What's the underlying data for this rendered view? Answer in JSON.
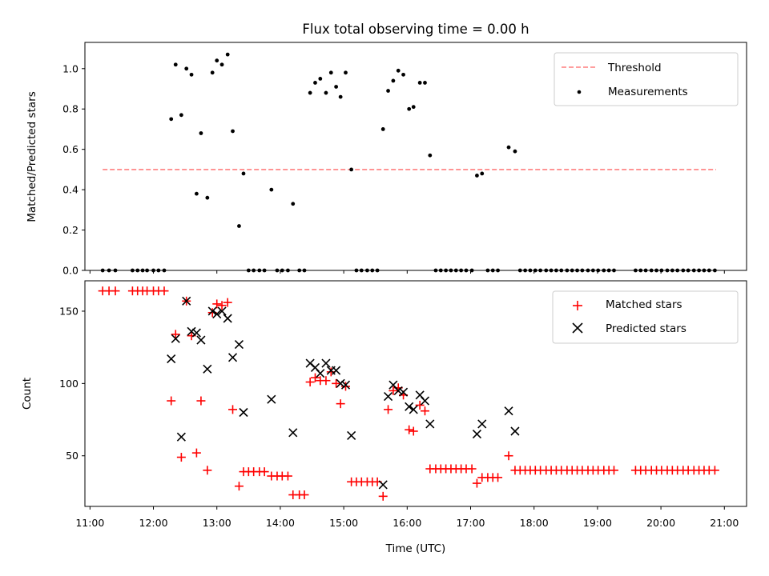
{
  "chart_data": {
    "title": "Flux total observing time = 0.00 h",
    "xlabel": "Time (UTC)",
    "x_ticks": [
      "11:00",
      "12:00",
      "13:00",
      "14:00",
      "15:00",
      "16:00",
      "17:00",
      "18:00",
      "19:00",
      "20:00",
      "21:00"
    ],
    "xlim": [
      10.92,
      21.35
    ],
    "top": {
      "type": "scatter",
      "ylabel": "Matched/Predicted stars",
      "ylim": [
        0,
        1.13
      ],
      "y_ticks": [
        "0.0",
        "0.2",
        "0.4",
        "0.6",
        "0.8",
        "1.0"
      ],
      "threshold": {
        "label": "Threshold",
        "value": 0.5,
        "x_start": 11.2,
        "x_end": 20.87,
        "color": "#ff7f7f"
      },
      "measurements": {
        "label": "Measurements",
        "color": "#000000",
        "points": [
          [
            11.2,
            0
          ],
          [
            11.3,
            0
          ],
          [
            11.4,
            0
          ],
          [
            11.67,
            0
          ],
          [
            11.75,
            0
          ],
          [
            11.83,
            0
          ],
          [
            11.9,
            0
          ],
          [
            12.0,
            0
          ],
          [
            12.08,
            0
          ],
          [
            12.17,
            0
          ],
          [
            12.28,
            0.75
          ],
          [
            12.35,
            1.02
          ],
          [
            12.44,
            0.77
          ],
          [
            12.52,
            1.0
          ],
          [
            12.6,
            0.97
          ],
          [
            12.68,
            0.38
          ],
          [
            12.75,
            0.68
          ],
          [
            12.85,
            0.36
          ],
          [
            12.93,
            0.98
          ],
          [
            13.0,
            1.04
          ],
          [
            13.08,
            1.02
          ],
          [
            13.17,
            1.07
          ],
          [
            13.25,
            0.69
          ],
          [
            13.35,
            0.22
          ],
          [
            13.42,
            0.48
          ],
          [
            13.5,
            0
          ],
          [
            13.58,
            0
          ],
          [
            13.67,
            0
          ],
          [
            13.75,
            0
          ],
          [
            13.86,
            0.4
          ],
          [
            13.95,
            0
          ],
          [
            14.03,
            0
          ],
          [
            14.12,
            0
          ],
          [
            14.2,
            0.33
          ],
          [
            14.3,
            0
          ],
          [
            14.38,
            0
          ],
          [
            14.47,
            0.88
          ],
          [
            14.55,
            0.93
          ],
          [
            14.63,
            0.95
          ],
          [
            14.72,
            0.88
          ],
          [
            14.8,
            0.98
          ],
          [
            14.88,
            0.91
          ],
          [
            14.95,
            0.86
          ],
          [
            15.03,
            0.98
          ],
          [
            15.12,
            0.5
          ],
          [
            15.2,
            0
          ],
          [
            15.28,
            0
          ],
          [
            15.37,
            0
          ],
          [
            15.45,
            0
          ],
          [
            15.53,
            0
          ],
          [
            15.62,
            0.7
          ],
          [
            15.7,
            0.89
          ],
          [
            15.78,
            0.94
          ],
          [
            15.86,
            0.99
          ],
          [
            15.94,
            0.97
          ],
          [
            16.03,
            0.8
          ],
          [
            16.1,
            0.81
          ],
          [
            16.2,
            0.93
          ],
          [
            16.28,
            0.93
          ],
          [
            16.36,
            0.57
          ],
          [
            16.45,
            0
          ],
          [
            16.53,
            0
          ],
          [
            16.61,
            0
          ],
          [
            16.69,
            0
          ],
          [
            16.77,
            0
          ],
          [
            16.85,
            0
          ],
          [
            16.93,
            0
          ],
          [
            17.02,
            0
          ],
          [
            17.1,
            0.47
          ],
          [
            17.18,
            0.48
          ],
          [
            17.27,
            0
          ],
          [
            17.35,
            0
          ],
          [
            17.43,
            0
          ],
          [
            17.6,
            0.61
          ],
          [
            17.7,
            0.59
          ],
          [
            17.78,
            0
          ],
          [
            17.86,
            0
          ],
          [
            17.94,
            0
          ],
          [
            18.02,
            0
          ],
          [
            18.1,
            0
          ],
          [
            18.19,
            0
          ],
          [
            18.27,
            0
          ],
          [
            18.35,
            0
          ],
          [
            18.43,
            0
          ],
          [
            18.52,
            0
          ],
          [
            18.6,
            0
          ],
          [
            18.68,
            0
          ],
          [
            18.76,
            0
          ],
          [
            18.85,
            0
          ],
          [
            18.93,
            0
          ],
          [
            19.01,
            0
          ],
          [
            19.1,
            0
          ],
          [
            19.18,
            0
          ],
          [
            19.26,
            0
          ],
          [
            19.6,
            0
          ],
          [
            19.68,
            0
          ],
          [
            19.76,
            0
          ],
          [
            19.85,
            0
          ],
          [
            19.93,
            0
          ],
          [
            20.01,
            0
          ],
          [
            20.1,
            0
          ],
          [
            20.18,
            0
          ],
          [
            20.26,
            0
          ],
          [
            20.35,
            0
          ],
          [
            20.43,
            0
          ],
          [
            20.52,
            0
          ],
          [
            20.6,
            0
          ],
          [
            20.68,
            0
          ],
          [
            20.76,
            0
          ],
          [
            20.85,
            0
          ]
        ]
      },
      "legend_position": "upper right"
    },
    "bottom": {
      "type": "scatter",
      "ylabel": "Count",
      "ylim": [
        15,
        171
      ],
      "y_ticks": [
        "50",
        "100",
        "150"
      ],
      "y_tick_values": [
        50,
        100,
        150
      ],
      "series": [
        {
          "name": "Matched stars",
          "marker": "plus",
          "color": "#ff0000",
          "points": [
            [
              11.2,
              164
            ],
            [
              11.3,
              164
            ],
            [
              11.4,
              164
            ],
            [
              11.67,
              164
            ],
            [
              11.75,
              164
            ],
            [
              11.83,
              164
            ],
            [
              11.9,
              164
            ],
            [
              12.0,
              164
            ],
            [
              12.08,
              164
            ],
            [
              12.17,
              164
            ],
            [
              12.28,
              88
            ],
            [
              12.35,
              134
            ],
            [
              12.44,
              49
            ],
            [
              12.52,
              157
            ],
            [
              12.6,
              133
            ],
            [
              12.68,
              52
            ],
            [
              12.75,
              88
            ],
            [
              12.85,
              40
            ],
            [
              12.93,
              149
            ],
            [
              13.0,
              155
            ],
            [
              13.08,
              154
            ],
            [
              13.17,
              156
            ],
            [
              13.25,
              82
            ],
            [
              13.35,
              29
            ],
            [
              13.42,
              39
            ],
            [
              13.5,
              39
            ],
            [
              13.58,
              39
            ],
            [
              13.67,
              39
            ],
            [
              13.75,
              39
            ],
            [
              13.86,
              36
            ],
            [
              13.95,
              36
            ],
            [
              14.03,
              36
            ],
            [
              14.12,
              36
            ],
            [
              14.2,
              23
            ],
            [
              14.3,
              23
            ],
            [
              14.38,
              23
            ],
            [
              14.47,
              101
            ],
            [
              14.55,
              104
            ],
            [
              14.63,
              102
            ],
            [
              14.72,
              102
            ],
            [
              14.8,
              108
            ],
            [
              14.88,
              100
            ],
            [
              14.95,
              86
            ],
            [
              15.03,
              98
            ],
            [
              15.12,
              32
            ],
            [
              15.2,
              32
            ],
            [
              15.28,
              32
            ],
            [
              15.37,
              32
            ],
            [
              15.45,
              32
            ],
            [
              15.53,
              32
            ],
            [
              15.62,
              22
            ],
            [
              15.7,
              82
            ],
            [
              15.78,
              95
            ],
            [
              15.86,
              97
            ],
            [
              15.94,
              92
            ],
            [
              16.03,
              68
            ],
            [
              16.1,
              67
            ],
            [
              16.2,
              85
            ],
            [
              16.28,
              81
            ],
            [
              16.36,
              41
            ],
            [
              16.45,
              41
            ],
            [
              16.53,
              41
            ],
            [
              16.61,
              41
            ],
            [
              16.69,
              41
            ],
            [
              16.77,
              41
            ],
            [
              16.85,
              41
            ],
            [
              16.93,
              41
            ],
            [
              17.02,
              41
            ],
            [
              17.1,
              31
            ],
            [
              17.18,
              35
            ],
            [
              17.27,
              35
            ],
            [
              17.35,
              35
            ],
            [
              17.43,
              35
            ],
            [
              17.6,
              50
            ],
            [
              17.7,
              40
            ],
            [
              17.78,
              40
            ],
            [
              17.86,
              40
            ],
            [
              17.94,
              40
            ],
            [
              18.02,
              40
            ],
            [
              18.1,
              40
            ],
            [
              18.19,
              40
            ],
            [
              18.27,
              40
            ],
            [
              18.35,
              40
            ],
            [
              18.43,
              40
            ],
            [
              18.52,
              40
            ],
            [
              18.6,
              40
            ],
            [
              18.68,
              40
            ],
            [
              18.76,
              40
            ],
            [
              18.85,
              40
            ],
            [
              18.93,
              40
            ],
            [
              19.01,
              40
            ],
            [
              19.1,
              40
            ],
            [
              19.18,
              40
            ],
            [
              19.26,
              40
            ],
            [
              19.6,
              40
            ],
            [
              19.68,
              40
            ],
            [
              19.76,
              40
            ],
            [
              19.85,
              40
            ],
            [
              19.93,
              40
            ],
            [
              20.01,
              40
            ],
            [
              20.1,
              40
            ],
            [
              20.18,
              40
            ],
            [
              20.26,
              40
            ],
            [
              20.35,
              40
            ],
            [
              20.43,
              40
            ],
            [
              20.52,
              40
            ],
            [
              20.6,
              40
            ],
            [
              20.68,
              40
            ],
            [
              20.76,
              40
            ],
            [
              20.85,
              40
            ]
          ]
        },
        {
          "name": "Predicted stars",
          "marker": "x",
          "color": "#000000",
          "points": [
            [
              12.28,
              117
            ],
            [
              12.35,
              131
            ],
            [
              12.44,
              63
            ],
            [
              12.52,
              157
            ],
            [
              12.6,
              136
            ],
            [
              12.68,
              135
            ],
            [
              12.75,
              130
            ],
            [
              12.85,
              110
            ],
            [
              12.93,
              150
            ],
            [
              13.0,
              148
            ],
            [
              13.08,
              150
            ],
            [
              13.17,
              145
            ],
            [
              13.25,
              118
            ],
            [
              13.35,
              127
            ],
            [
              13.42,
              80
            ],
            [
              13.86,
              89
            ],
            [
              14.2,
              66
            ],
            [
              14.47,
              114
            ],
            [
              14.55,
              111
            ],
            [
              14.63,
              107
            ],
            [
              14.72,
              114
            ],
            [
              14.8,
              109
            ],
            [
              14.88,
              109
            ],
            [
              14.95,
              100
            ],
            [
              15.03,
              99
            ],
            [
              15.12,
              64
            ],
            [
              15.62,
              30
            ],
            [
              15.7,
              91
            ],
            [
              15.78,
              99
            ],
            [
              15.86,
              95
            ],
            [
              15.94,
              94
            ],
            [
              16.03,
              84
            ],
            [
              16.1,
              82
            ],
            [
              16.2,
              92
            ],
            [
              16.28,
              88
            ],
            [
              16.36,
              72
            ],
            [
              17.1,
              65
            ],
            [
              17.18,
              72
            ],
            [
              17.6,
              81
            ],
            [
              17.7,
              67
            ]
          ]
        }
      ],
      "legend_position": "upper right"
    }
  }
}
